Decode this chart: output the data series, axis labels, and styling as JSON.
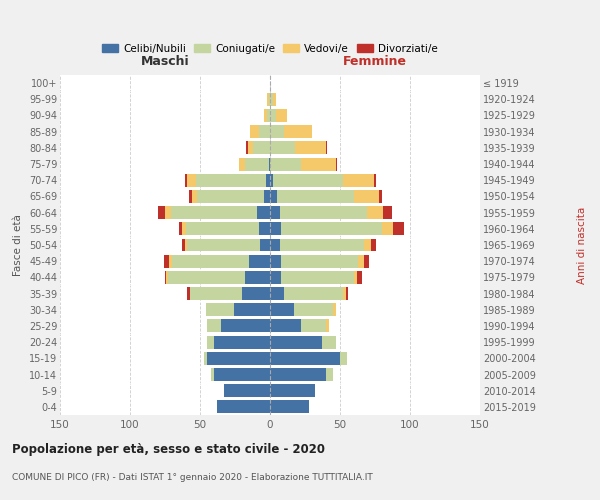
{
  "age_groups": [
    "0-4",
    "5-9",
    "10-14",
    "15-19",
    "20-24",
    "25-29",
    "30-34",
    "35-39",
    "40-44",
    "45-49",
    "50-54",
    "55-59",
    "60-64",
    "65-69",
    "70-74",
    "75-79",
    "80-84",
    "85-89",
    "90-94",
    "95-99",
    "100+"
  ],
  "birth_years": [
    "2015-2019",
    "2010-2014",
    "2005-2009",
    "2000-2004",
    "1995-1999",
    "1990-1994",
    "1985-1989",
    "1980-1984",
    "1975-1979",
    "1970-1974",
    "1965-1969",
    "1960-1964",
    "1955-1959",
    "1950-1954",
    "1945-1949",
    "1940-1944",
    "1935-1939",
    "1930-1934",
    "1925-1929",
    "1920-1924",
    "≤ 1919"
  ],
  "colors": {
    "celibe": "#4472a4",
    "coniugato": "#c5d5a0",
    "vedovo": "#f5c96a",
    "divorziato": "#c0302a"
  },
  "maschi": {
    "celibe": [
      38,
      33,
      40,
      45,
      40,
      35,
      26,
      20,
      18,
      15,
      7,
      8,
      9,
      4,
      3,
      1,
      0,
      0,
      0,
      0,
      0
    ],
    "coniugato": [
      0,
      0,
      2,
      2,
      5,
      10,
      20,
      37,
      55,
      55,
      52,
      52,
      62,
      48,
      50,
      17,
      12,
      8,
      2,
      1,
      0
    ],
    "vedovo": [
      0,
      0,
      0,
      0,
      0,
      0,
      0,
      0,
      1,
      2,
      2,
      3,
      4,
      4,
      6,
      4,
      4,
      6,
      2,
      1,
      0
    ],
    "divorziato": [
      0,
      0,
      0,
      0,
      0,
      0,
      0,
      2,
      1,
      4,
      2,
      2,
      5,
      2,
      2,
      0,
      1,
      0,
      0,
      0,
      0
    ]
  },
  "femmine": {
    "nubile": [
      28,
      32,
      40,
      50,
      37,
      22,
      17,
      10,
      8,
      8,
      7,
      8,
      7,
      5,
      2,
      0,
      0,
      0,
      0,
      0,
      0
    ],
    "coniugata": [
      0,
      0,
      5,
      5,
      10,
      18,
      28,
      42,
      52,
      55,
      60,
      72,
      62,
      55,
      50,
      22,
      18,
      10,
      4,
      2,
      0
    ],
    "vedova": [
      0,
      0,
      0,
      0,
      0,
      2,
      2,
      2,
      2,
      4,
      5,
      8,
      12,
      18,
      22,
      25,
      22,
      20,
      8,
      2,
      0
    ],
    "divorziata": [
      0,
      0,
      0,
      0,
      0,
      0,
      0,
      2,
      4,
      4,
      4,
      8,
      6,
      2,
      2,
      1,
      1,
      0,
      0,
      0,
      0
    ]
  },
  "title": "Popolazione per età, sesso e stato civile - 2020",
  "subtitle": "COMUNE DI PICO (FR) - Dati ISTAT 1° gennaio 2020 - Elaborazione TUTTITALIA.IT",
  "xlabel_maschi": "Maschi",
  "xlabel_femmine": "Femmine",
  "ylabel_left": "Fasce di età",
  "ylabel_right": "Anni di nascita",
  "xlim": 150,
  "background_color": "#f0f0f0",
  "plot_bg": "#ffffff",
  "legend_labels": [
    "Celibi/Nubili",
    "Coniugati/e",
    "Vedovi/e",
    "Divorziati/e"
  ]
}
